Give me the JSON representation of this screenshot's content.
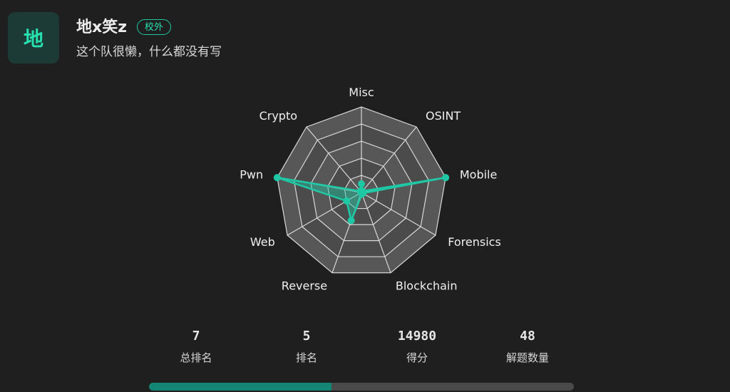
{
  "team": {
    "avatar_text": "地",
    "name": "地x笑z",
    "badge": "校外",
    "description": "这个队很懒，什么都没有写"
  },
  "colors": {
    "background": "#1f1f1f",
    "accent": "#1ec8a5",
    "radar_fill": "#5a5a5a",
    "grid": "#d9d9d9"
  },
  "chart_data": {
    "type": "radar",
    "categories": [
      "Misc",
      "OSINT",
      "Mobile",
      "Forensics",
      "Blockchain",
      "Reverse",
      "Web",
      "Pwn",
      "Crypto"
    ],
    "values": [
      0.1,
      0.02,
      1.0,
      0.02,
      0.02,
      0.35,
      0.2,
      1.0,
      0.02
    ],
    "range": [
      0,
      1
    ],
    "rings": 5
  },
  "stats": [
    {
      "value": "7",
      "label": "总排名"
    },
    {
      "value": "5",
      "label": "排名"
    },
    {
      "value": "14980",
      "label": "得分"
    },
    {
      "value": "48",
      "label": "解题数量"
    }
  ],
  "progress": {
    "fraction": 0.43
  }
}
